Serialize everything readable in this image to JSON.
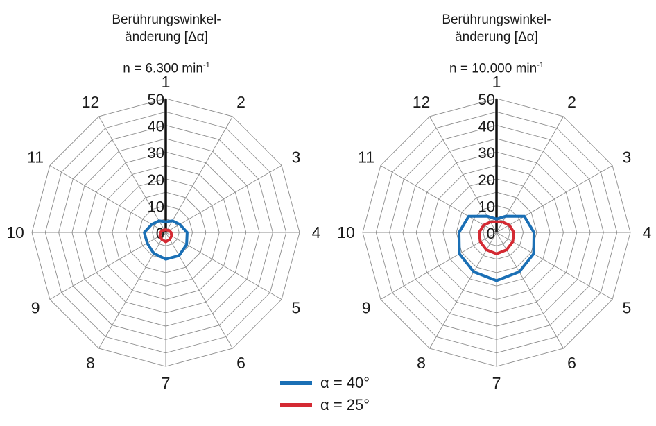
{
  "chart_data": [
    {
      "type": "radar",
      "title": "Berührungswinkel-",
      "title_line2": "änderung [Δα]",
      "subtitle": "n = 6.300 min",
      "subtitle_sup": "-1",
      "categories": [
        "1",
        "2",
        "3",
        "4",
        "5",
        "6",
        "7",
        "8",
        "9",
        "10",
        "11",
        "12"
      ],
      "ticks": [
        "0",
        "10",
        "20",
        "30",
        "40",
        "50"
      ],
      "rlim": [
        0,
        50
      ],
      "series": [
        {
          "name": "α = 40°",
          "color": "#1a6fb5",
          "values": [
            4,
            5,
            6,
            8,
            9,
            10,
            10,
            9,
            8,
            8,
            6,
            5
          ]
        },
        {
          "name": "α = 25°",
          "color": "#d42a33",
          "values": [
            1,
            1,
            1.5,
            2,
            2.5,
            3,
            3.5,
            3,
            2.5,
            2,
            1.5,
            1
          ]
        }
      ]
    },
    {
      "type": "radar",
      "title": "Berührungswinkel-",
      "title_line2": "änderung [Δα]",
      "subtitle": "n = 10.000 min",
      "subtitle_sup": "-1",
      "categories": [
        "1",
        "2",
        "3",
        "4",
        "5",
        "6",
        "7",
        "8",
        "9",
        "10",
        "11",
        "12"
      ],
      "ticks": [
        "0",
        "10",
        "20",
        "30",
        "40",
        "50"
      ],
      "rlim": [
        0,
        50
      ],
      "series": [
        {
          "name": "α = 40°",
          "color": "#1a6fb5",
          "values": [
            5,
            7,
            12,
            14,
            16,
            17,
            18,
            17,
            16,
            14,
            12,
            7
          ]
        },
        {
          "name": "α = 25°",
          "color": "#d42a33",
          "values": [
            4,
            4.5,
            5.5,
            6.5,
            7,
            7.5,
            8,
            7.5,
            7,
            6.5,
            5.5,
            4.5
          ]
        }
      ]
    }
  ],
  "legend": [
    {
      "label": "α = 40°",
      "color": "#1a6fb5"
    },
    {
      "label": "α = 25°",
      "color": "#d42a33"
    }
  ]
}
